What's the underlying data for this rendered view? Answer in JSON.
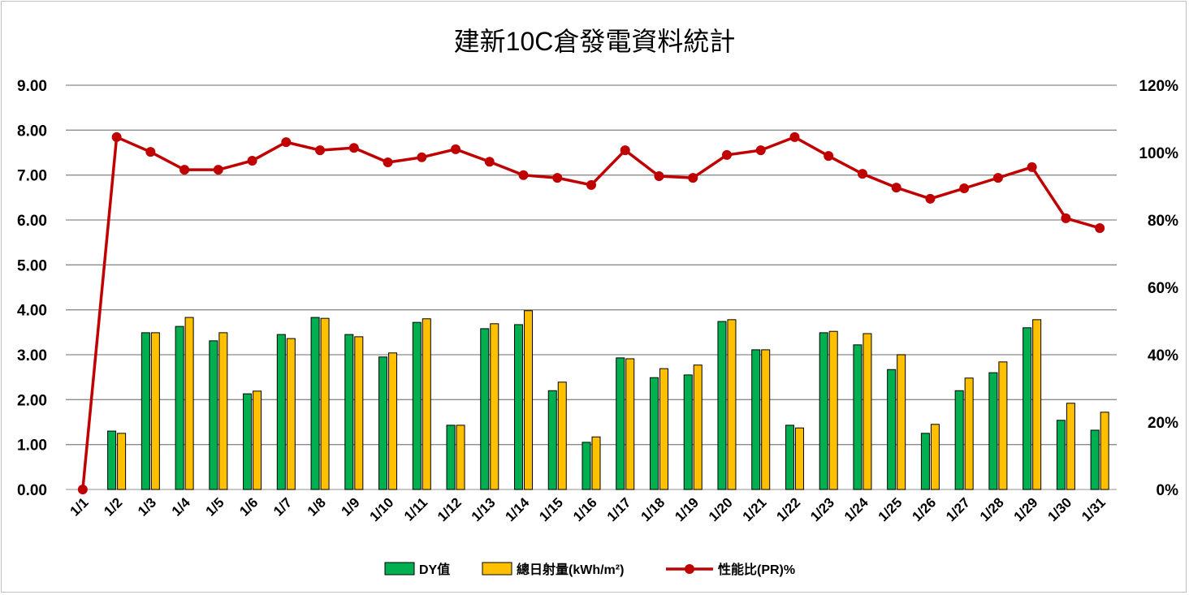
{
  "chart_data": {
    "type": "bar+line",
    "title": "建新10C倉發電資料統計",
    "categories": [
      "1/1",
      "1/2",
      "1/3",
      "1/4",
      "1/5",
      "1/6",
      "1/7",
      "1/8",
      "1/9",
      "1/10",
      "1/11",
      "1/12",
      "1/13",
      "1/14",
      "1/15",
      "1/16",
      "1/17",
      "1/18",
      "1/19",
      "1/20",
      "1/21",
      "1/22",
      "1/23",
      "1/24",
      "1/25",
      "1/26",
      "1/27",
      "1/28",
      "1/29",
      "1/30",
      "1/31"
    ],
    "series": [
      {
        "name": "DY值",
        "type": "bar",
        "axis": "left",
        "color": "#00b050",
        "values": [
          0,
          1.3,
          3.49,
          3.63,
          3.31,
          2.13,
          3.45,
          3.83,
          3.45,
          2.95,
          3.72,
          1.43,
          3.58,
          3.67,
          2.2,
          1.05,
          2.93,
          2.49,
          2.55,
          3.74,
          3.11,
          1.43,
          3.49,
          3.22,
          2.67,
          1.25,
          2.2,
          2.6,
          3.6,
          1.54,
          1.32
        ]
      },
      {
        "name": "總日射量(kWh/m²)",
        "type": "bar",
        "axis": "left",
        "color": "#ffc000",
        "values": [
          0,
          1.25,
          3.49,
          3.83,
          3.49,
          2.19,
          3.36,
          3.81,
          3.4,
          3.04,
          3.8,
          1.43,
          3.69,
          3.98,
          2.39,
          1.17,
          2.91,
          2.69,
          2.77,
          3.78,
          3.11,
          1.37,
          3.52,
          3.47,
          3.0,
          1.45,
          2.48,
          2.84,
          3.78,
          1.92,
          1.72
        ]
      },
      {
        "name": "性能比(PR)%",
        "type": "line",
        "axis": "right",
        "color": "#c00000",
        "values": [
          0,
          104.6,
          100.2,
          94.9,
          94.9,
          97.6,
          103.1,
          100.7,
          101.4,
          97.1,
          98.6,
          101.0,
          97.3,
          93.3,
          92.5,
          90.4,
          100.7,
          93.0,
          92.5,
          99.3,
          100.7,
          104.6,
          99.0,
          93.7,
          89.6,
          86.3,
          89.4,
          92.5,
          95.7,
          80.5,
          77.6
        ]
      }
    ],
    "y_left": {
      "range": [
        0,
        9
      ],
      "ticks": [
        "0.00",
        "1.00",
        "2.00",
        "3.00",
        "4.00",
        "5.00",
        "6.00",
        "7.00",
        "8.00",
        "9.00"
      ]
    },
    "y_right": {
      "range": [
        0,
        120
      ],
      "ticks": [
        "0%",
        "20%",
        "40%",
        "60%",
        "80%",
        "100%",
        "120%"
      ]
    },
    "grid": true,
    "legend": "bottom"
  }
}
